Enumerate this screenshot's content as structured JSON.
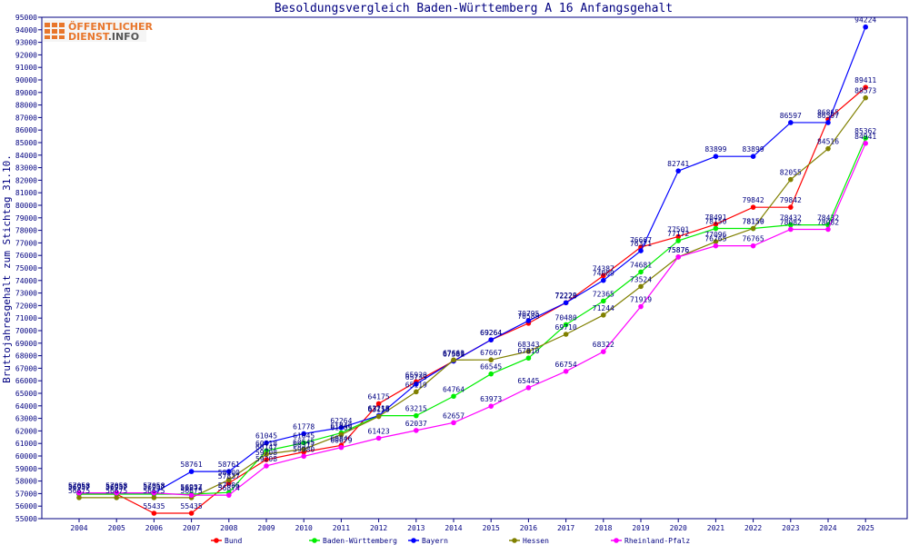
{
  "logo": {
    "line1": "ÖFFENTLICHER",
    "line2a": "DIENST",
    "line2b": ".INFO"
  },
  "chart_data": {
    "type": "line",
    "title": "Besoldungsvergleich Baden-Württemberg A 16 Anfangsgehalt",
    "xlabel": "",
    "ylabel": "Bruttojahresgehalt zum Stichtag 31.10.",
    "ylim": [
      55000,
      95000
    ],
    "ytick_step": 1000,
    "grid": false,
    "legend_position": "bottom",
    "categories": [
      "2004",
      "2005",
      "2006",
      "2007",
      "2008",
      "2009",
      "2010",
      "2011",
      "2012",
      "2013",
      "2014",
      "2015",
      "2016",
      "2017",
      "2018",
      "2019",
      "2020",
      "2021",
      "2022",
      "2023",
      "2024",
      "2025"
    ],
    "series": [
      {
        "name": "Bund",
        "color": "#ff0000",
        "values": [
          56957,
          56957,
          55435,
          55435,
          57837,
          59708,
          60317,
          60846,
          64175,
          65920,
          67581,
          69264,
          70589,
          72226,
          74387,
          76667,
          77501,
          78491,
          79842,
          79842,
          86865,
          89411
        ]
      },
      {
        "name": "Baden-Württemberg",
        "color": "#00ee00",
        "values": [
          56957,
          56957,
          56957,
          56957,
          57086,
          60418,
          61045,
          61840,
          63215,
          63215,
          64764,
          66545,
          67810,
          70480,
          72365,
          74681,
          77172,
          78150,
          78150,
          78432,
          78432,
          85362
        ]
      },
      {
        "name": "Bayern",
        "color": "#0000ff",
        "values": [
          57058,
          57058,
          57058,
          58761,
          58761,
          61045,
          61778,
          62264,
          63218,
          65739,
          67569,
          69264,
          70795,
          72229,
          74009,
          76371,
          82741,
          83899,
          83899,
          86597,
          86597,
          94224
        ]
      },
      {
        "name": "Hessen",
        "color": "#808000",
        "values": [
          56675,
          56675,
          56675,
          56675,
          58100,
          60147,
          60545,
          61705,
          63150,
          65119,
          67663,
          67667,
          68343,
          69710,
          71244,
          73524,
          75876,
          77096,
          78150,
          82055,
          84516,
          88573
        ]
      },
      {
        "name": "Rheinland-Pfalz",
        "color": "#ff00ff",
        "values": [
          57058,
          57058,
          57058,
          56874,
          56874,
          59208,
          59980,
          60679,
          61423,
          62037,
          62657,
          63973,
          65445,
          66754,
          68322,
          71919,
          75876,
          76765,
          76765,
          78082,
          78082,
          84941
        ]
      }
    ]
  }
}
